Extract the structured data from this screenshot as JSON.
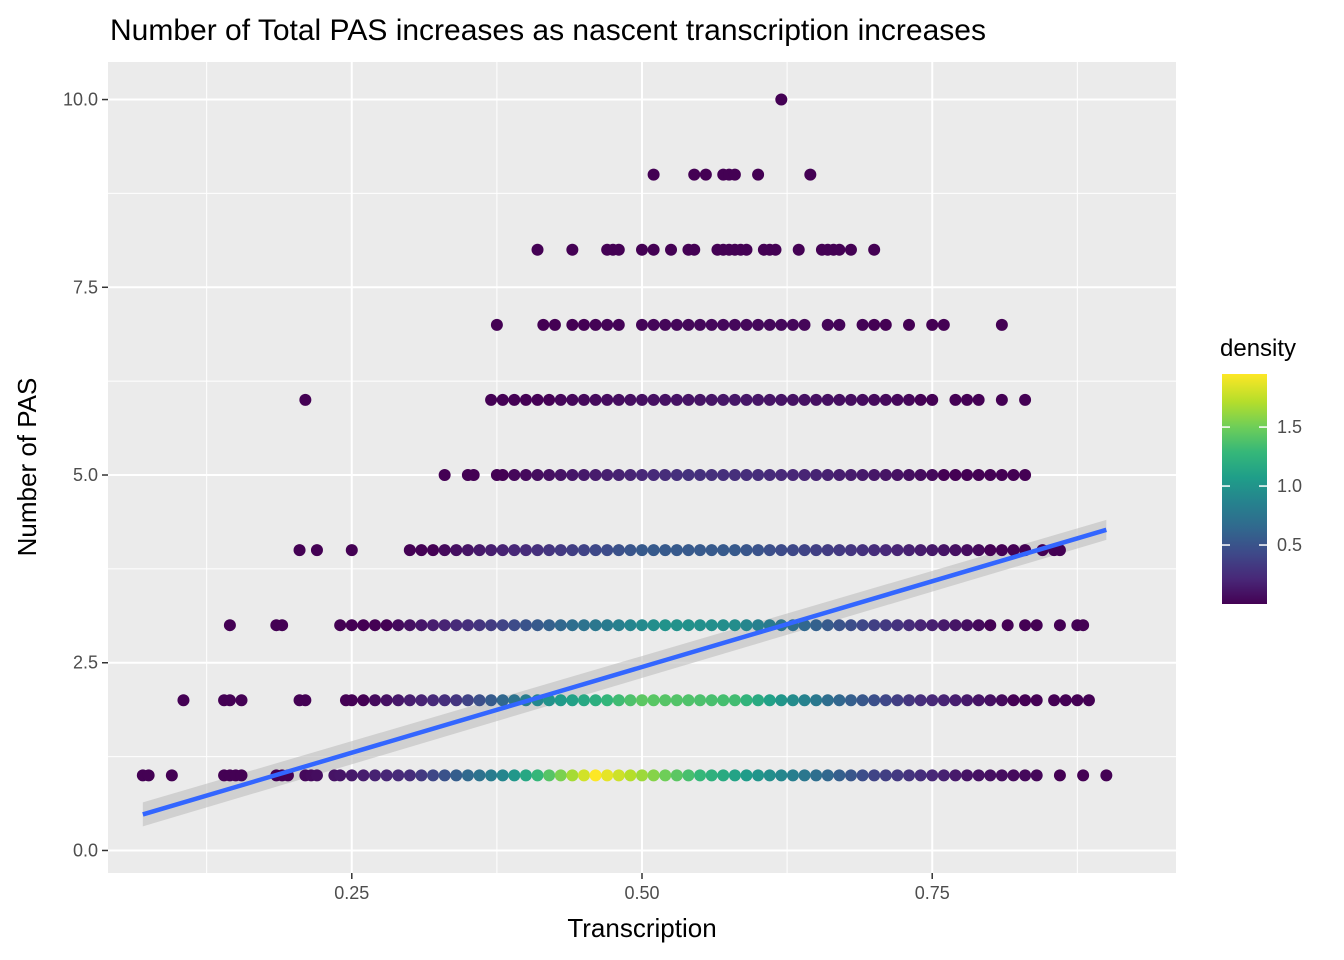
{
  "chart_data": {
    "type": "scatter",
    "title": "Number of Total PAS increases as nascent transcription increases",
    "xlabel": "Transcription",
    "ylabel": "Number of PAS",
    "xlim": [
      0.04,
      0.96
    ],
    "ylim": [
      -0.3,
      10.5
    ],
    "x_ticks": [
      0.25,
      0.5,
      0.75
    ],
    "x_tick_labels": [
      "0.25",
      "0.50",
      "0.75"
    ],
    "y_ticks": [
      0,
      2.5,
      5,
      7.5,
      10
    ],
    "y_tick_labels": [
      "0.0",
      "2.5",
      "5.0",
      "7.5",
      "10.0"
    ],
    "grid": true,
    "legend": {
      "title": "density",
      "position": "right",
      "range": [
        0.0,
        1.95
      ],
      "ticks": [
        0.5,
        1.0,
        1.5
      ],
      "tick_labels": [
        "0.5",
        "1.0",
        "1.5"
      ],
      "colors": [
        "#440154",
        "#482878",
        "#3e4989",
        "#31688e",
        "#26828e",
        "#1f9e89",
        "#35b779",
        "#6ece58",
        "#b5de2b",
        "#fde725"
      ]
    },
    "point_color_default": "#440154",
    "fit_line": {
      "method": "lm",
      "x": [
        0.07,
        0.9
      ],
      "y": [
        0.48,
        4.27
      ],
      "color": "#3366ff",
      "ribbon_color": "#bebebe"
    },
    "density_bands": [
      {
        "y": 1,
        "density": [
          [
            0.2,
            0.02
          ],
          [
            0.3,
            0.25
          ],
          [
            0.38,
            0.9
          ],
          [
            0.46,
            1.95
          ],
          [
            0.55,
            1.3
          ],
          [
            0.62,
            0.9
          ],
          [
            0.7,
            0.4
          ],
          [
            0.78,
            0.1
          ],
          [
            0.86,
            0.01
          ]
        ]
      },
      {
        "y": 2,
        "density": [
          [
            0.26,
            0.02
          ],
          [
            0.34,
            0.3
          ],
          [
            0.42,
            1.0
          ],
          [
            0.5,
            1.45
          ],
          [
            0.58,
            1.35
          ],
          [
            0.66,
            0.7
          ],
          [
            0.74,
            0.25
          ],
          [
            0.82,
            0.02
          ]
        ]
      },
      {
        "y": 3,
        "density": [
          [
            0.28,
            0.02
          ],
          [
            0.36,
            0.3
          ],
          [
            0.44,
            0.7
          ],
          [
            0.52,
            1.0
          ],
          [
            0.58,
            0.95
          ],
          [
            0.66,
            0.55
          ],
          [
            0.74,
            0.2
          ],
          [
            0.8,
            0.02
          ]
        ]
      },
      {
        "y": 4,
        "density": [
          [
            0.32,
            0.02
          ],
          [
            0.42,
            0.3
          ],
          [
            0.5,
            0.55
          ],
          [
            0.58,
            0.55
          ],
          [
            0.66,
            0.35
          ],
          [
            0.74,
            0.15
          ],
          [
            0.8,
            0.02
          ]
        ]
      },
      {
        "y": 5,
        "density": [
          [
            0.38,
            0.02
          ],
          [
            0.46,
            0.15
          ],
          [
            0.54,
            0.28
          ],
          [
            0.6,
            0.25
          ],
          [
            0.68,
            0.15
          ],
          [
            0.76,
            0.03
          ]
        ]
      },
      {
        "y": 6,
        "density": [
          [
            0.42,
            0.02
          ],
          [
            0.5,
            0.08
          ],
          [
            0.58,
            0.12
          ],
          [
            0.66,
            0.08
          ],
          [
            0.74,
            0.02
          ]
        ]
      },
      {
        "y": 7,
        "density": [
          [
            0.45,
            0.01
          ],
          [
            0.55,
            0.04
          ],
          [
            0.62,
            0.04
          ],
          [
            0.7,
            0.01
          ]
        ]
      }
    ],
    "series": [
      {
        "name": "PAS=1",
        "y": 1,
        "x": [
          0.07,
          0.075,
          0.095,
          0.14,
          0.145,
          0.15,
          0.155,
          0.185,
          0.19,
          0.195,
          0.21,
          0.215,
          0.22,
          0.235,
          0.24,
          0.25,
          0.26,
          0.27,
          0.28,
          0.29,
          0.3,
          0.31,
          0.32,
          0.33,
          0.34,
          0.35,
          0.36,
          0.37,
          0.38,
          0.39,
          0.4,
          0.41,
          0.42,
          0.43,
          0.44,
          0.45,
          0.46,
          0.47,
          0.48,
          0.49,
          0.5,
          0.51,
          0.52,
          0.53,
          0.54,
          0.55,
          0.56,
          0.57,
          0.58,
          0.59,
          0.6,
          0.61,
          0.62,
          0.63,
          0.64,
          0.65,
          0.66,
          0.67,
          0.68,
          0.69,
          0.7,
          0.71,
          0.72,
          0.73,
          0.74,
          0.75,
          0.76,
          0.77,
          0.78,
          0.79,
          0.8,
          0.81,
          0.82,
          0.83,
          0.84,
          0.86,
          0.88,
          0.9
        ]
      },
      {
        "name": "PAS=2",
        "y": 2,
        "x": [
          0.105,
          0.14,
          0.145,
          0.155,
          0.205,
          0.21,
          0.245,
          0.25,
          0.26,
          0.27,
          0.28,
          0.29,
          0.3,
          0.31,
          0.32,
          0.33,
          0.34,
          0.35,
          0.36,
          0.37,
          0.38,
          0.39,
          0.4,
          0.41,
          0.42,
          0.43,
          0.44,
          0.45,
          0.46,
          0.47,
          0.48,
          0.49,
          0.5,
          0.51,
          0.52,
          0.53,
          0.54,
          0.55,
          0.56,
          0.57,
          0.58,
          0.59,
          0.6,
          0.61,
          0.62,
          0.63,
          0.64,
          0.65,
          0.66,
          0.67,
          0.68,
          0.69,
          0.7,
          0.71,
          0.72,
          0.73,
          0.74,
          0.75,
          0.76,
          0.77,
          0.78,
          0.79,
          0.8,
          0.81,
          0.82,
          0.83,
          0.84,
          0.855,
          0.865,
          0.875,
          0.885
        ]
      },
      {
        "name": "PAS=3",
        "y": 3,
        "x": [
          0.145,
          0.185,
          0.19,
          0.24,
          0.25,
          0.26,
          0.27,
          0.28,
          0.29,
          0.3,
          0.31,
          0.32,
          0.33,
          0.34,
          0.35,
          0.36,
          0.37,
          0.38,
          0.39,
          0.4,
          0.41,
          0.42,
          0.43,
          0.44,
          0.45,
          0.46,
          0.47,
          0.48,
          0.49,
          0.5,
          0.51,
          0.52,
          0.53,
          0.54,
          0.55,
          0.56,
          0.57,
          0.58,
          0.59,
          0.6,
          0.61,
          0.62,
          0.63,
          0.64,
          0.65,
          0.66,
          0.67,
          0.68,
          0.69,
          0.7,
          0.71,
          0.72,
          0.73,
          0.74,
          0.75,
          0.76,
          0.77,
          0.78,
          0.79,
          0.8,
          0.815,
          0.83,
          0.84,
          0.86,
          0.875,
          0.88
        ]
      },
      {
        "name": "PAS=4",
        "y": 4,
        "x": [
          0.205,
          0.22,
          0.25,
          0.3,
          0.31,
          0.32,
          0.33,
          0.34,
          0.35,
          0.36,
          0.37,
          0.38,
          0.39,
          0.4,
          0.41,
          0.42,
          0.43,
          0.44,
          0.45,
          0.46,
          0.47,
          0.48,
          0.49,
          0.5,
          0.51,
          0.52,
          0.53,
          0.54,
          0.55,
          0.56,
          0.57,
          0.58,
          0.59,
          0.6,
          0.61,
          0.62,
          0.63,
          0.64,
          0.65,
          0.66,
          0.67,
          0.68,
          0.69,
          0.7,
          0.71,
          0.72,
          0.73,
          0.74,
          0.75,
          0.76,
          0.77,
          0.78,
          0.79,
          0.8,
          0.81,
          0.82,
          0.83,
          0.845,
          0.855,
          0.86
        ]
      },
      {
        "name": "PAS=5",
        "y": 5,
        "x": [
          0.33,
          0.35,
          0.355,
          0.375,
          0.38,
          0.39,
          0.4,
          0.41,
          0.42,
          0.43,
          0.44,
          0.45,
          0.46,
          0.47,
          0.48,
          0.49,
          0.5,
          0.51,
          0.52,
          0.53,
          0.54,
          0.55,
          0.56,
          0.57,
          0.58,
          0.59,
          0.6,
          0.61,
          0.62,
          0.63,
          0.64,
          0.65,
          0.66,
          0.67,
          0.68,
          0.69,
          0.7,
          0.71,
          0.72,
          0.73,
          0.74,
          0.75,
          0.76,
          0.77,
          0.78,
          0.79,
          0.8,
          0.81,
          0.82,
          0.83
        ]
      },
      {
        "name": "PAS=6",
        "y": 6,
        "x": [
          0.21,
          0.37,
          0.38,
          0.39,
          0.4,
          0.41,
          0.42,
          0.43,
          0.44,
          0.45,
          0.46,
          0.47,
          0.48,
          0.49,
          0.5,
          0.51,
          0.52,
          0.53,
          0.54,
          0.55,
          0.56,
          0.57,
          0.58,
          0.59,
          0.6,
          0.61,
          0.62,
          0.63,
          0.64,
          0.65,
          0.66,
          0.67,
          0.68,
          0.69,
          0.7,
          0.71,
          0.72,
          0.73,
          0.74,
          0.75,
          0.77,
          0.78,
          0.79,
          0.81,
          0.83
        ]
      },
      {
        "name": "PAS=7",
        "y": 7,
        "x": [
          0.375,
          0.415,
          0.425,
          0.44,
          0.45,
          0.46,
          0.47,
          0.48,
          0.5,
          0.51,
          0.52,
          0.53,
          0.54,
          0.55,
          0.56,
          0.57,
          0.58,
          0.59,
          0.6,
          0.61,
          0.62,
          0.63,
          0.64,
          0.66,
          0.67,
          0.69,
          0.7,
          0.71,
          0.73,
          0.75,
          0.76,
          0.81
        ]
      },
      {
        "name": "PAS=8",
        "y": 8,
        "x": [
          0.41,
          0.44,
          0.47,
          0.475,
          0.48,
          0.5,
          0.51,
          0.525,
          0.54,
          0.545,
          0.565,
          0.57,
          0.575,
          0.58,
          0.585,
          0.59,
          0.605,
          0.61,
          0.615,
          0.635,
          0.655,
          0.66,
          0.665,
          0.67,
          0.68,
          0.7
        ]
      },
      {
        "name": "PAS=9",
        "y": 9,
        "x": [
          0.51,
          0.545,
          0.555,
          0.57,
          0.575,
          0.58,
          0.6,
          0.645
        ]
      },
      {
        "name": "PAS=10",
        "y": 10,
        "x": [
          0.62
        ]
      }
    ]
  }
}
